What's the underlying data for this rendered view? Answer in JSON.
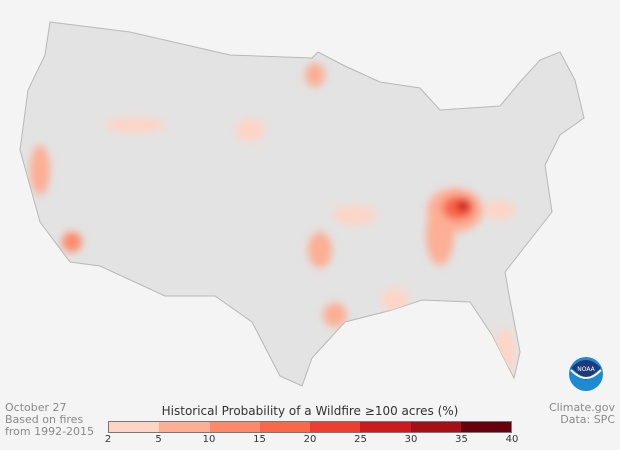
{
  "date": "October 27",
  "basis_line1": "Based on fires",
  "basis_line2": "from 1992-2015",
  "legend": {
    "title": "Historical Probability of a Wildfire ≥100 acres (%)",
    "ticks": [
      "2",
      "5",
      "10",
      "15",
      "20",
      "25",
      "30",
      "35",
      "40"
    ],
    "colors": [
      "#fdd5c6",
      "#fcaf94",
      "#fc8a6a",
      "#f96848",
      "#ee3e2f",
      "#cc1a1e",
      "#a50f15",
      "#67000d"
    ]
  },
  "credit": "Climate.gov",
  "source": "Data: SPC",
  "logo": "NOAA",
  "map": {
    "land_color": "#e3e3e3",
    "border_color": "#b8b8b8"
  }
}
